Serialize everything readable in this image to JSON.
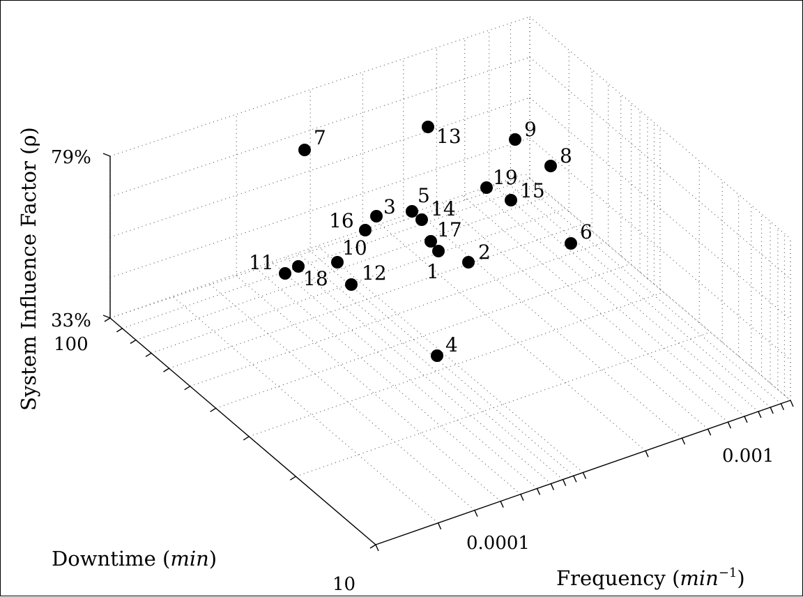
{
  "chart_data": {
    "type": "scatter",
    "zlabel": "System Influence Factor (ρ)",
    "ylabel_text": "Downtime (",
    "ylabel_unit": "min",
    "ylabel_close": ")",
    "xlabel_text": "Frequency (",
    "xlabel_unit": "min",
    "xlabel_sup": "−1",
    "xlabel_close": ")",
    "z_ticks": [
      "33%",
      "79%"
    ],
    "y_ticks": [
      "100",
      "10"
    ],
    "x_ticks": [
      "0.0001",
      "0.001"
    ],
    "zlim": [
      0.33,
      0.79
    ],
    "ylim": [
      10,
      100
    ],
    "xscale": "log",
    "yscale": "log",
    "grid": true,
    "points": [
      {
        "label": "1"
      },
      {
        "label": "2"
      },
      {
        "label": "3"
      },
      {
        "label": "4"
      },
      {
        "label": "5"
      },
      {
        "label": "6"
      },
      {
        "label": "7"
      },
      {
        "label": "8"
      },
      {
        "label": "9"
      },
      {
        "label": "10"
      },
      {
        "label": "11"
      },
      {
        "label": "12"
      },
      {
        "label": "13"
      },
      {
        "label": "14"
      },
      {
        "label": "15"
      },
      {
        "label": "16"
      },
      {
        "label": "17"
      },
      {
        "label": "18"
      },
      {
        "label": "19"
      }
    ]
  }
}
